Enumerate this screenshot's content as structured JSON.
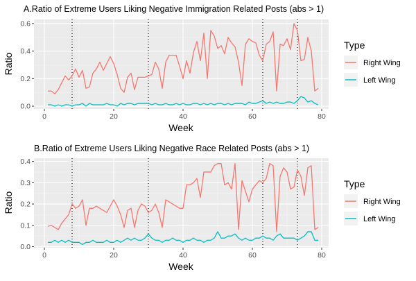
{
  "colors": {
    "right_wing": "#F8766D",
    "left_wing": "#00BFC4",
    "panel_bg": "#EBEBEB",
    "grid_major": "#FFFFFF",
    "tick_text": "#4D4D4D"
  },
  "legend": {
    "title": "Type",
    "placement": "right",
    "items": [
      "Right Wing",
      "Left Wing"
    ]
  },
  "chart_data": [
    {
      "type": "line",
      "title": "A.Ratio of Extreme Users Liking Negative Immigration Related Posts (abs > 1)",
      "xlabel": "Week",
      "ylabel": "Ratio",
      "xlim": [
        -3,
        82
      ],
      "ylim": [
        -0.02,
        0.63
      ],
      "xticks": [
        0,
        20,
        40,
        60,
        80
      ],
      "xtick_labels": [
        "0",
        "20",
        "40",
        "60",
        "80"
      ],
      "yticks": [
        0,
        0.2,
        0.4,
        0.6
      ],
      "ytick_labels": [
        "0.0",
        "0.2",
        "0.4",
        "0.6"
      ],
      "grid": true,
      "vlines": [
        8,
        30,
        63,
        73
      ],
      "vline_style": "dotted",
      "x": [
        1,
        2,
        3,
        4,
        5,
        6,
        7,
        8,
        9,
        10,
        11,
        12,
        13,
        14,
        15,
        16,
        17,
        18,
        19,
        20,
        21,
        22,
        23,
        24,
        25,
        26,
        27,
        28,
        29,
        30,
        31,
        32,
        33,
        34,
        35,
        36,
        37,
        38,
        39,
        40,
        41,
        42,
        43,
        44,
        45,
        46,
        47,
        48,
        49,
        50,
        51,
        52,
        53,
        54,
        55,
        56,
        57,
        58,
        59,
        60,
        61,
        62,
        63,
        64,
        65,
        66,
        67,
        68,
        69,
        70,
        71,
        72,
        73,
        74,
        75,
        76,
        77,
        78,
        79
      ],
      "series": [
        {
          "name": "Right Wing",
          "color": "#F8766D",
          "values": [
            0.11,
            0.11,
            0.09,
            0.12,
            0.17,
            0.22,
            0.19,
            0.22,
            0.27,
            0.21,
            0.26,
            0.13,
            0.14,
            0.24,
            0.27,
            0.32,
            0.26,
            0.31,
            0.36,
            0.31,
            0.23,
            0.13,
            0.1,
            0.21,
            0.24,
            0.12,
            0.21,
            0.21,
            0.21,
            0.22,
            0.23,
            0.32,
            0.27,
            0.13,
            0.32,
            0.37,
            0.37,
            0.37,
            0.29,
            0.2,
            0.33,
            0.24,
            0.39,
            0.47,
            0.33,
            0.53,
            0.2,
            0.55,
            0.51,
            0.42,
            0.44,
            0.38,
            0.5,
            0.46,
            0.43,
            0.32,
            0.15,
            0.45,
            0.49,
            0.47,
            0.46,
            0.37,
            0.33,
            0.45,
            0.47,
            0.54,
            0.11,
            0.45,
            0.44,
            0.49,
            0.41,
            0.6,
            0.55,
            0.33,
            0.34,
            0.5,
            0.4,
            0.11,
            0.13
          ]
        },
        {
          "name": "Left Wing",
          "color": "#00BFC4",
          "values": [
            0.01,
            0.01,
            0.0,
            0.01,
            0.0,
            0.01,
            0.01,
            0.0,
            0.01,
            0.01,
            0.02,
            0.0,
            0.02,
            0.01,
            0.01,
            0.01,
            0.01,
            0.02,
            0.01,
            0.01,
            0.0,
            0.02,
            0.01,
            0.02,
            0.02,
            0.01,
            0.02,
            0.02,
            0.02,
            0.02,
            0.01,
            0.02,
            0.01,
            0.01,
            0.02,
            0.01,
            0.01,
            0.02,
            0.01,
            0.02,
            0.01,
            0.01,
            0.02,
            0.02,
            0.01,
            0.02,
            0.01,
            0.02,
            0.01,
            0.02,
            0.02,
            0.01,
            0.02,
            0.01,
            0.02,
            0.02,
            0.02,
            0.01,
            0.03,
            0.02,
            0.02,
            0.03,
            0.04,
            0.02,
            0.03,
            0.02,
            0.03,
            0.02,
            0.02,
            0.03,
            0.03,
            0.02,
            0.04,
            0.07,
            0.06,
            0.03,
            0.04,
            0.02,
            0.01
          ]
        }
      ]
    },
    {
      "type": "line",
      "title": "B.Ratio of Extreme Users Liking Negative Race Related Posts (abs > 1)",
      "xlabel": "Week",
      "ylabel": "Ratio",
      "xlim": [
        -3,
        82
      ],
      "ylim": [
        -0.005,
        0.415
      ],
      "xticks": [
        0,
        20,
        40,
        60,
        80
      ],
      "xtick_labels": [
        "0",
        "20",
        "40",
        "60",
        "80"
      ],
      "yticks": [
        0,
        0.1,
        0.2,
        0.3,
        0.4
      ],
      "ytick_labels": [
        "0.0",
        "0.1",
        "0.2",
        "0.3",
        "0.4"
      ],
      "grid": true,
      "vlines": [
        8,
        30,
        63,
        73
      ],
      "vline_style": "dotted",
      "x": [
        1,
        2,
        3,
        4,
        5,
        6,
        7,
        8,
        9,
        10,
        11,
        12,
        13,
        14,
        15,
        16,
        17,
        18,
        19,
        20,
        21,
        22,
        23,
        24,
        25,
        26,
        27,
        28,
        29,
        30,
        31,
        32,
        33,
        34,
        35,
        36,
        37,
        38,
        39,
        40,
        41,
        42,
        43,
        44,
        45,
        46,
        47,
        48,
        49,
        50,
        51,
        52,
        53,
        54,
        55,
        56,
        57,
        58,
        59,
        60,
        61,
        62,
        63,
        64,
        65,
        66,
        67,
        68,
        69,
        70,
        71,
        72,
        73,
        74,
        75,
        76,
        77,
        78,
        79
      ],
      "series": [
        {
          "name": "Right Wing",
          "color": "#F8766D",
          "values": [
            0.095,
            0.1,
            0.09,
            0.08,
            0.11,
            0.13,
            0.15,
            0.2,
            0.18,
            0.19,
            0.22,
            0.1,
            0.18,
            0.18,
            0.19,
            0.18,
            0.17,
            0.16,
            0.19,
            0.22,
            0.19,
            0.15,
            0.09,
            0.17,
            0.18,
            0.09,
            0.17,
            0.2,
            0.19,
            0.16,
            0.17,
            0.2,
            0.16,
            0.09,
            0.22,
            0.21,
            0.2,
            0.19,
            0.18,
            0.18,
            0.29,
            0.29,
            0.3,
            0.32,
            0.23,
            0.35,
            0.35,
            0.35,
            0.38,
            0.39,
            0.39,
            0.29,
            0.3,
            0.27,
            0.39,
            0.08,
            0.31,
            0.26,
            0.21,
            0.27,
            0.29,
            0.31,
            0.3,
            0.32,
            0.39,
            0.38,
            0.07,
            0.33,
            0.37,
            0.35,
            0.27,
            0.28,
            0.36,
            0.33,
            0.24,
            0.37,
            0.38,
            0.08,
            0.09
          ]
        },
        {
          "name": "Left Wing",
          "color": "#00BFC4",
          "values": [
            0.02,
            0.02,
            0.03,
            0.02,
            0.03,
            0.02,
            0.03,
            0.02,
            0.02,
            0.02,
            0.01,
            0.02,
            0.02,
            0.03,
            0.02,
            0.02,
            0.02,
            0.03,
            0.02,
            0.02,
            0.03,
            0.02,
            0.03,
            0.04,
            0.03,
            0.04,
            0.03,
            0.03,
            0.04,
            0.06,
            0.04,
            0.03,
            0.03,
            0.02,
            0.03,
            0.03,
            0.04,
            0.03,
            0.03,
            0.02,
            0.03,
            0.03,
            0.04,
            0.03,
            0.03,
            0.02,
            0.03,
            0.03,
            0.04,
            0.07,
            0.04,
            0.04,
            0.05,
            0.05,
            0.06,
            0.04,
            0.03,
            0.04,
            0.03,
            0.03,
            0.04,
            0.04,
            0.05,
            0.04,
            0.04,
            0.03,
            0.05,
            0.06,
            0.04,
            0.04,
            0.04,
            0.04,
            0.03,
            0.04,
            0.05,
            0.07,
            0.07,
            0.03,
            0.03
          ]
        }
      ]
    }
  ]
}
